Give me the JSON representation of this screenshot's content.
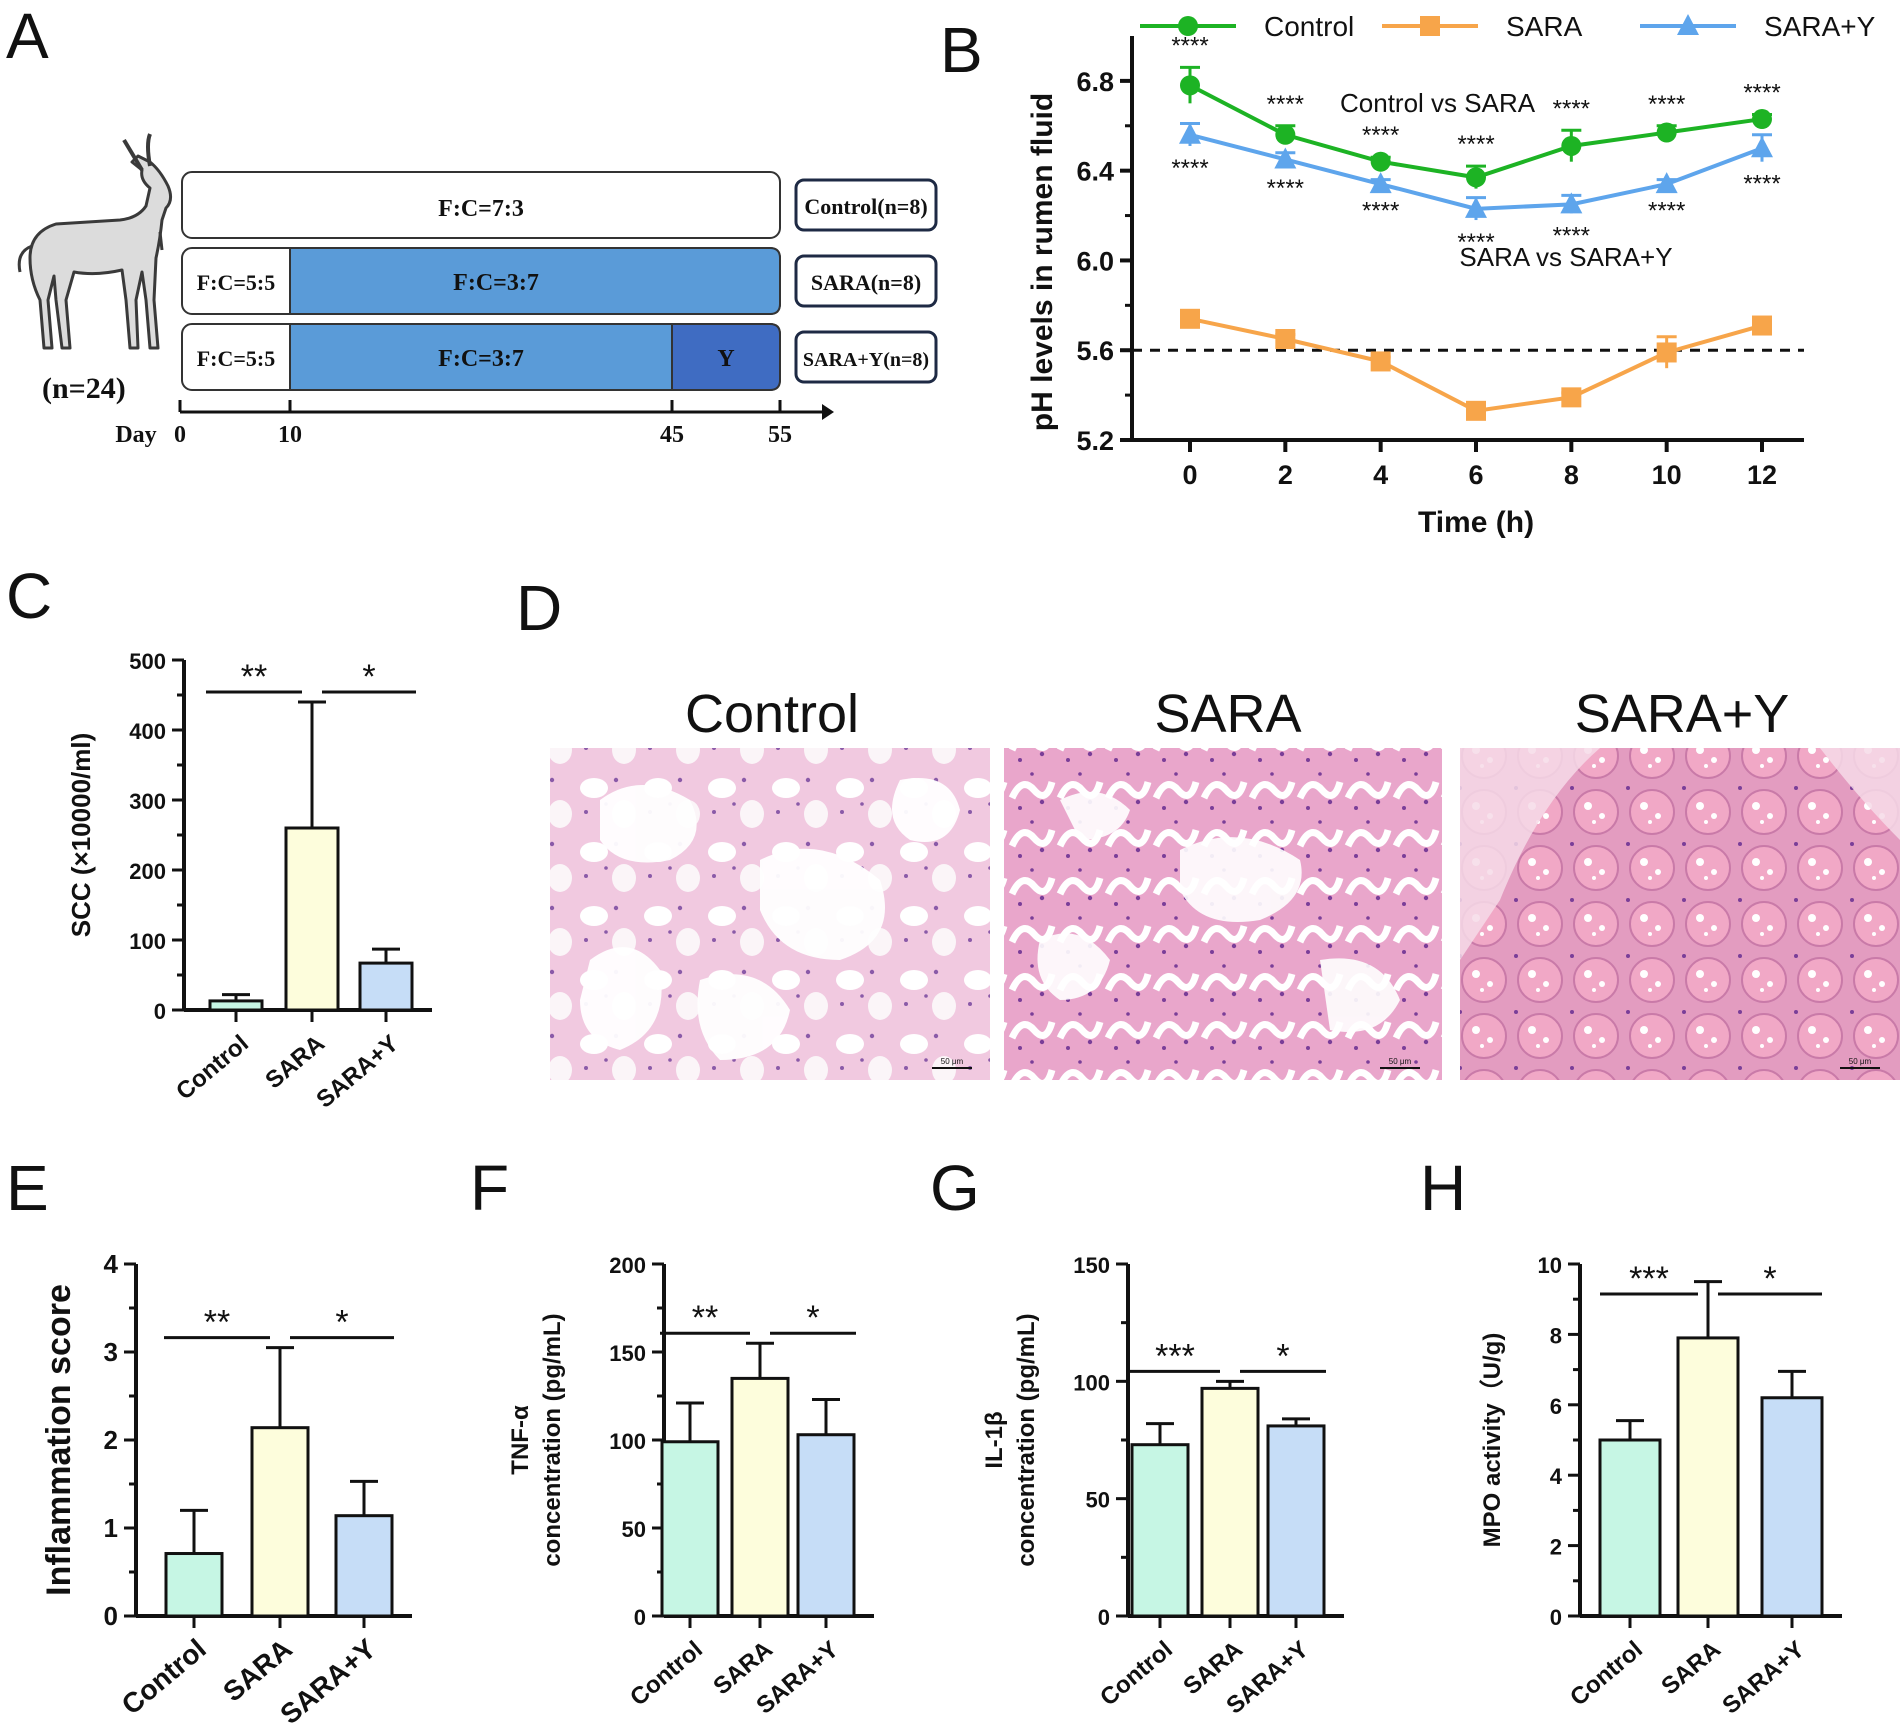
{
  "panel_letters": [
    "A",
    "B",
    "C",
    "D",
    "E",
    "F",
    "G",
    "H"
  ],
  "colors": {
    "control_line": "#1db324",
    "sara_line": "#f7a54a",
    "sarap_line": "#5ea5ec",
    "bar_control": "#c6f6e4",
    "bar_sara": "#fdfddc",
    "bar_sarap": "#c6ddf7",
    "blue_mid": "#5a9bd8",
    "blue_dark": "#3f6cc2",
    "tissue_pink": "#e8a3c9",
    "nuclei": "#8a5aa8"
  },
  "panel_a": {
    "animal_count": "(n=24)",
    "axis_label": "Day",
    "day_ticks": [
      "0",
      "10",
      "45",
      "55"
    ],
    "rows": [
      {
        "segments": [
          "F:C=7:3"
        ],
        "group": "Control(n=8)"
      },
      {
        "segments": [
          "F:C=5:5",
          "F:C=3:7"
        ],
        "group": "SARA(n=8)"
      },
      {
        "segments": [
          "F:C=5:5",
          "F:C=3:7",
          "Y"
        ],
        "group": "SARA+Y(n=8)"
      }
    ]
  },
  "chart_data": [
    {
      "id": "B",
      "type": "line",
      "xlabel": "Time (h)",
      "ylabel": "pH levels in rumen fluid",
      "x": [
        0,
        2,
        4,
        6,
        8,
        10,
        12
      ],
      "xticks": [
        "0",
        "2",
        "4",
        "6",
        "8",
        "10",
        "12"
      ],
      "ylim": [
        5.2,
        7.0
      ],
      "yticks": [
        "5.2",
        "5.6",
        "6.0",
        "6.4",
        "6.8"
      ],
      "threshold": 5.6,
      "legend": [
        "Control",
        "SARA",
        "SARA+Y"
      ],
      "series": [
        {
          "name": "Control",
          "marker": "circle",
          "values": [
            6.78,
            6.56,
            6.44,
            6.37,
            6.51,
            6.57,
            6.63
          ],
          "err": [
            0.08,
            0.04,
            0.02,
            0.05,
            0.07,
            0.03,
            0.02
          ]
        },
        {
          "name": "SARA",
          "marker": "square",
          "values": [
            5.74,
            5.65,
            5.55,
            5.33,
            5.39,
            5.59,
            5.71
          ],
          "err": [
            0.02,
            0.02,
            0.02,
            0.02,
            0.02,
            0.07,
            0.02
          ]
        },
        {
          "name": "SARA+Y",
          "marker": "triangle",
          "values": [
            6.56,
            6.45,
            6.34,
            6.23,
            6.25,
            6.34,
            6.5
          ],
          "err": [
            0.05,
            0.03,
            0.02,
            0.05,
            0.04,
            0.02,
            0.06
          ]
        }
      ],
      "annotations": {
        "control_vs_sara_label": "Control vs SARA",
        "sara_vs_sarap_label": "SARA vs SARA+Y",
        "top_marks": [
          "****",
          "****",
          "****",
          "****",
          "****",
          "****",
          "****"
        ],
        "bottom_marks": [
          "****",
          "****",
          "****",
          "****",
          "****",
          "****",
          "****"
        ]
      }
    },
    {
      "id": "C",
      "type": "bar",
      "categories": [
        "Control",
        "SARA",
        "SARA+Y"
      ],
      "values": [
        13,
        260,
        67
      ],
      "err": [
        9,
        180,
        20
      ],
      "ylabel": "SCC (×10000/ml)",
      "ylim": [
        0,
        500
      ],
      "yticks": [
        "0",
        "100",
        "200",
        "300",
        "400",
        "500"
      ],
      "sig": [
        {
          "from": 0,
          "to": 1,
          "label": "**"
        },
        {
          "from": 1,
          "to": 2,
          "label": "*"
        }
      ]
    },
    {
      "id": "E",
      "type": "bar",
      "categories": [
        "Control",
        "SARA",
        "SARA+Y"
      ],
      "values": [
        0.71,
        2.14,
        1.14
      ],
      "err": [
        0.49,
        0.91,
        0.39
      ],
      "ylabel": "Inflammation score",
      "ylim": [
        0,
        4
      ],
      "yticks": [
        "0",
        "1",
        "2",
        "3",
        "4"
      ],
      "sig": [
        {
          "from": 0,
          "to": 1,
          "label": "**"
        },
        {
          "from": 1,
          "to": 2,
          "label": "*"
        }
      ]
    },
    {
      "id": "F",
      "type": "bar",
      "categories": [
        "Control",
        "SARA",
        "SARA+Y"
      ],
      "values": [
        99,
        135,
        103
      ],
      "err": [
        22,
        20,
        20
      ],
      "ylabel": "TNF-α",
      "ylabel2": "concentration (pg/mL)",
      "ylim": [
        0,
        200
      ],
      "yticks": [
        "0",
        "50",
        "100",
        "150",
        "200"
      ],
      "sig": [
        {
          "from": 0,
          "to": 1,
          "label": "**"
        },
        {
          "from": 1,
          "to": 2,
          "label": "*"
        }
      ]
    },
    {
      "id": "G",
      "type": "bar",
      "categories": [
        "Control",
        "SARA",
        "SARA+Y"
      ],
      "values": [
        73,
        97,
        81
      ],
      "err": [
        9,
        3,
        3
      ],
      "ylabel": "IL-1β",
      "ylabel2": "concentration (pg/mL)",
      "ylim": [
        0,
        150
      ],
      "yticks": [
        "0",
        "50",
        "100",
        "150"
      ],
      "sig": [
        {
          "from": 0,
          "to": 1,
          "label": "***"
        },
        {
          "from": 1,
          "to": 2,
          "label": "*"
        }
      ]
    },
    {
      "id": "H",
      "type": "bar",
      "categories": [
        "Control",
        "SARA",
        "SARA+Y"
      ],
      "values": [
        5.0,
        7.9,
        6.2
      ],
      "err": [
        0.55,
        1.6,
        0.75
      ],
      "ylabel": "MPO activity（U/g)",
      "ylim": [
        0,
        10
      ],
      "yticks": [
        "0",
        "2",
        "4",
        "6",
        "8",
        "10"
      ],
      "sig": [
        {
          "from": 0,
          "to": 1,
          "label": "***"
        },
        {
          "from": 1,
          "to": 2,
          "label": "*"
        }
      ]
    }
  ],
  "panel_d": {
    "titles": [
      "Control",
      "SARA",
      "SARA+Y"
    ],
    "scale_label": "50 μm"
  }
}
